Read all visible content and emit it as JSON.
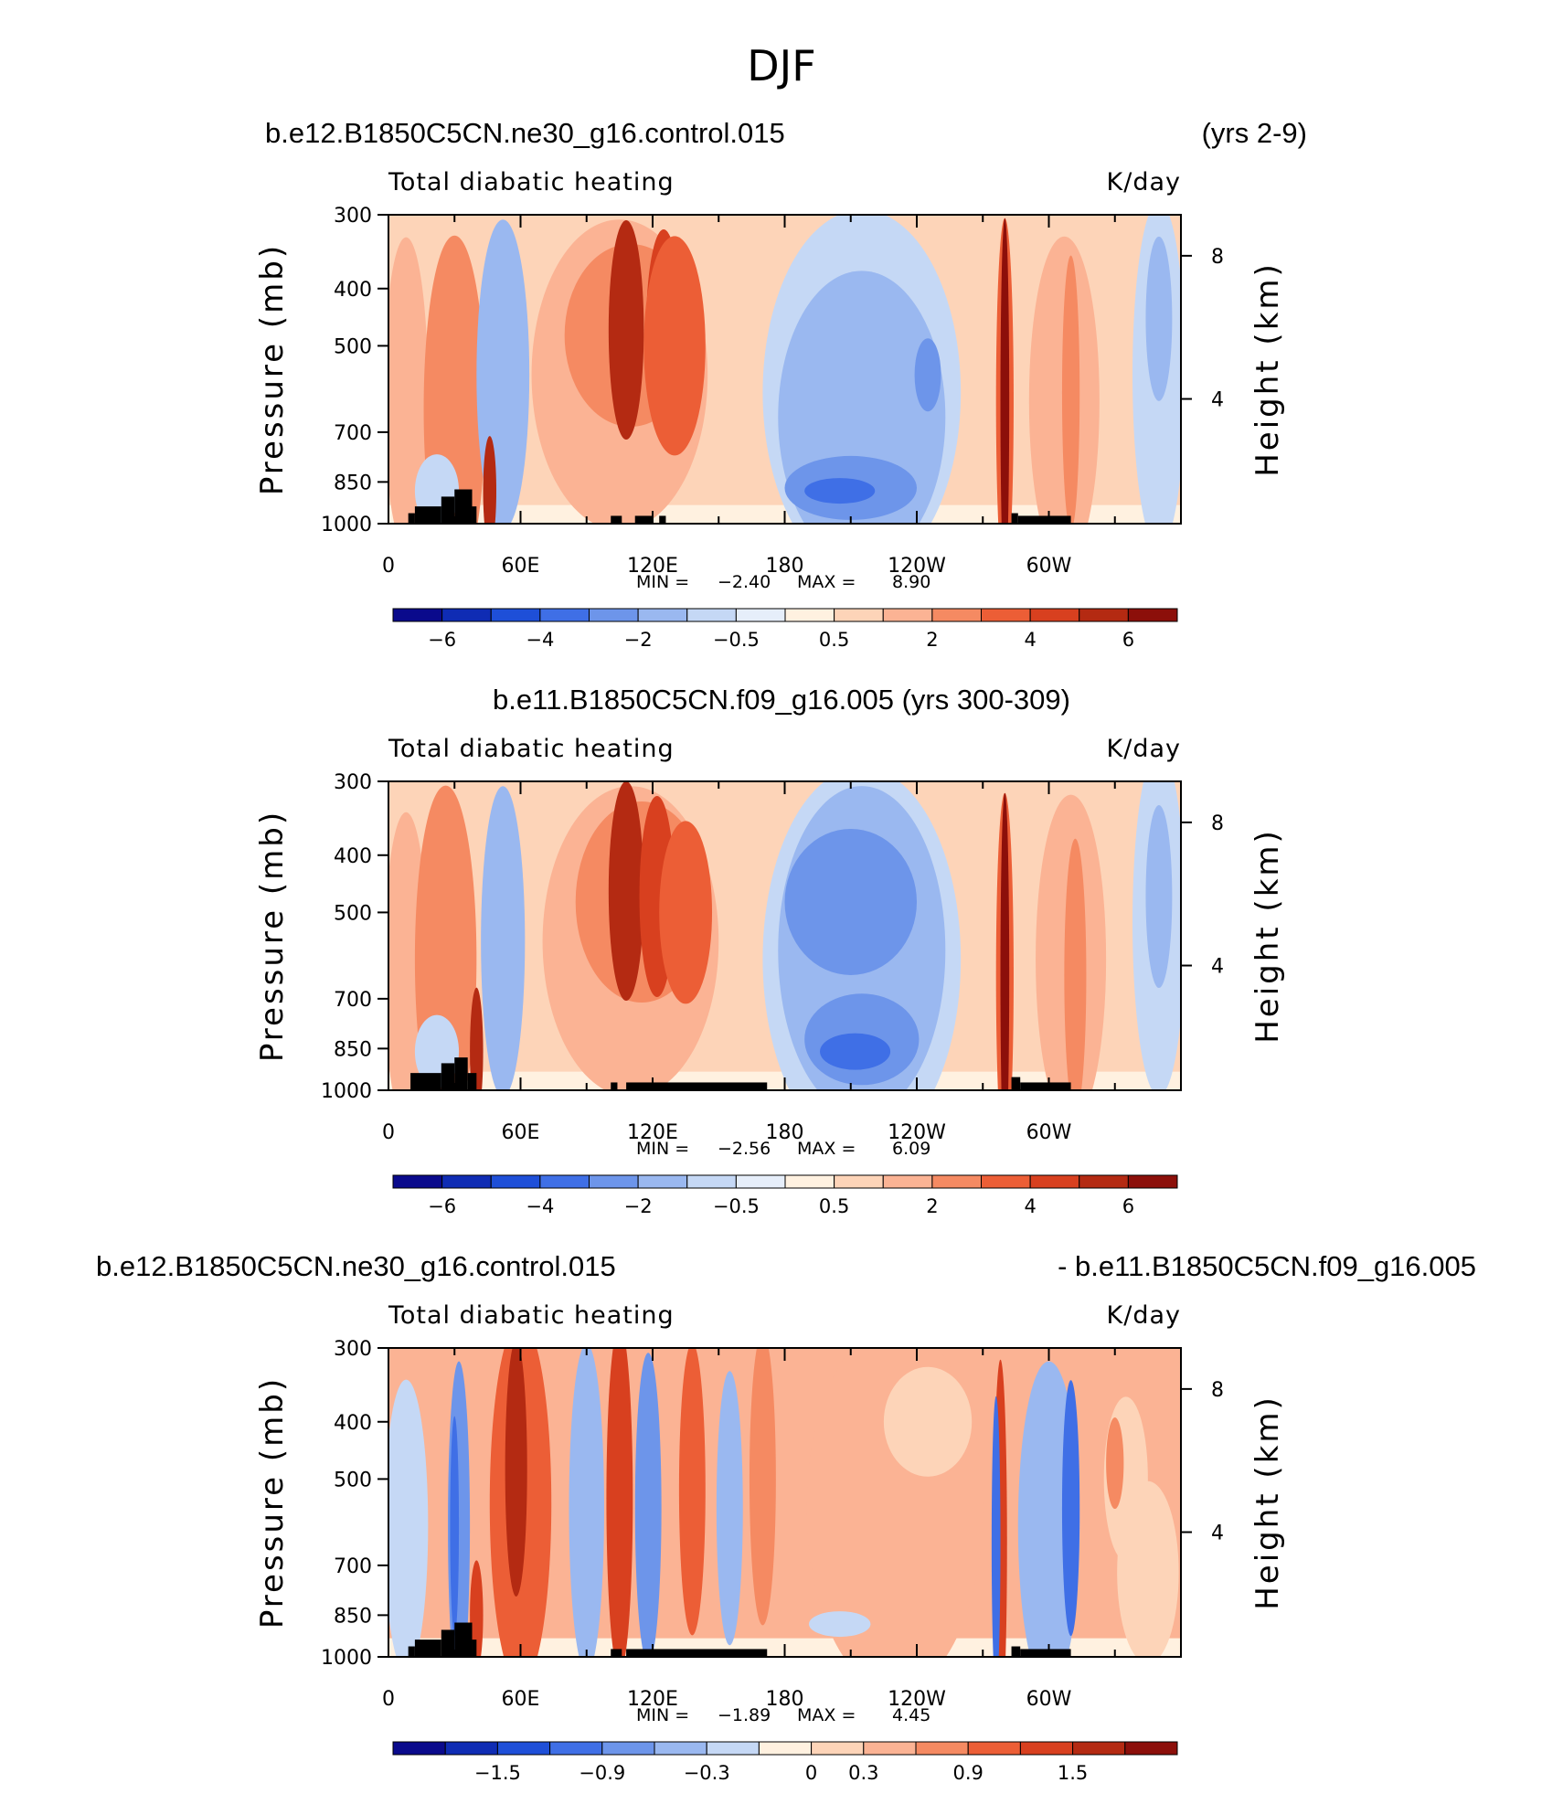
{
  "figure": {
    "title": "DJF"
  },
  "chart_data": [
    {
      "type": "heatmap",
      "run_left": "b.e12.B1850C5CN.ne30_g16.control.015",
      "run_right": "(yrs 2-9)",
      "title": "Total diabatic heating",
      "units": "K/day",
      "xlabel": "",
      "ylabel": "Pressure (mb)",
      "y2label": "Height (km)",
      "xticks": [
        "0",
        "60E",
        "120E",
        "180",
        "120W",
        "60W"
      ],
      "xlim": [
        0,
        360
      ],
      "yticks": [
        "300",
        "400",
        "500",
        "700",
        "850",
        "1000"
      ],
      "ylim": [
        1000,
        300
      ],
      "y2ticks": [
        "8",
        "4"
      ],
      "min_label": "MIN =",
      "min": "−2.40",
      "max_label": "MAX =",
      "max": "8.90",
      "colorbar_labels": [
        "−6",
        "−4",
        "−2",
        "−0.5",
        "0.5",
        "2",
        "4",
        "6"
      ],
      "colorbar_colors": [
        "#0a0a8c",
        "#0f2cb4",
        "#1e4fd8",
        "#3f6fe6",
        "#6d95ea",
        "#9ab8f0",
        "#c5d8f5",
        "#e6eefa",
        "#fff1e0",
        "#fdd4b8",
        "#fbb394",
        "#f58a62",
        "#ec5e36",
        "#d8401f",
        "#b42a12",
        "#8c0f0a"
      ]
    },
    {
      "type": "heatmap",
      "run_left": "b.e11.B1850C5CN.f09_g16.005 (yrs 300-309)",
      "run_right": "",
      "title": "Total diabatic heating",
      "units": "K/day",
      "xlabel": "",
      "ylabel": "Pressure (mb)",
      "y2label": "Height (km)",
      "xticks": [
        "0",
        "60E",
        "120E",
        "180",
        "120W",
        "60W"
      ],
      "xlim": [
        0,
        360
      ],
      "yticks": [
        "300",
        "400",
        "500",
        "700",
        "850",
        "1000"
      ],
      "ylim": [
        1000,
        300
      ],
      "y2ticks": [
        "8",
        "4"
      ],
      "min_label": "MIN =",
      "min": "−2.56",
      "max_label": "MAX =",
      "max": "6.09",
      "colorbar_labels": [
        "−6",
        "−4",
        "−2",
        "−0.5",
        "0.5",
        "2",
        "4",
        "6"
      ],
      "colorbar_colors": [
        "#0a0a8c",
        "#0f2cb4",
        "#1e4fd8",
        "#3f6fe6",
        "#6d95ea",
        "#9ab8f0",
        "#c5d8f5",
        "#e6eefa",
        "#fff1e0",
        "#fdd4b8",
        "#fbb394",
        "#f58a62",
        "#ec5e36",
        "#d8401f",
        "#b42a12",
        "#8c0f0a"
      ]
    },
    {
      "type": "heatmap",
      "run_left": "b.e12.B1850C5CN.ne30_g16.control.015",
      "run_right": "- b.e11.B1850C5CN.f09_g16.005",
      "title": "Total diabatic heating",
      "units": "K/day",
      "xlabel": "",
      "ylabel": "Pressure (mb)",
      "y2label": "Height (km)",
      "xticks": [
        "0",
        "60E",
        "120E",
        "180",
        "120W",
        "60W"
      ],
      "xlim": [
        0,
        360
      ],
      "yticks": [
        "300",
        "400",
        "500",
        "700",
        "850",
        "1000"
      ],
      "ylim": [
        1000,
        300
      ],
      "y2ticks": [
        "8",
        "4"
      ],
      "min_label": "MIN =",
      "min": "−1.89",
      "max_label": "MAX =",
      "max": "4.45",
      "colorbar_labels": [
        "−1.5",
        "−0.9",
        "−0.3",
        "0",
        "0.3",
        "0.9",
        "1.5"
      ],
      "colorbar_colors": [
        "#0a0a8c",
        "#0f2cb4",
        "#1e4fd8",
        "#3f6fe6",
        "#6d95ea",
        "#9ab8f0",
        "#c5d8f5",
        "#fff1e0",
        "#fdd4b8",
        "#fbb394",
        "#f58a62",
        "#ec5e36",
        "#d8401f",
        "#b42a12",
        "#8c0f0a"
      ]
    }
  ]
}
